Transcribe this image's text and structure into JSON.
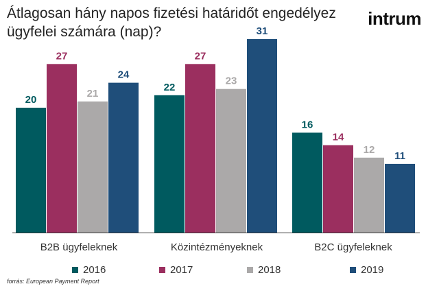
{
  "title": "Átlagosan hány napos fizetési határidőt engedélyez ügyfelei számára (nap)?",
  "logo": "intrum",
  "source": "forrás: European Payment Report",
  "colors": {
    "2016": "#005a5f",
    "2017": "#9b2f5f",
    "2018": "#aba9a9",
    "2019": "#1f4e7a"
  },
  "chart_data": {
    "type": "bar",
    "title": "Átlagosan hány napos fizetési határidőt engedélyez ügyfelei számára (nap)?",
    "categories": [
      "B2B ügyfeleknek",
      "Közintézményeknek",
      "B2C ügyfeleknek"
    ],
    "series": [
      {
        "name": "2016",
        "values": [
          20,
          22,
          16
        ]
      },
      {
        "name": "2017",
        "values": [
          27,
          27,
          14
        ]
      },
      {
        "name": "2018",
        "values": [
          21,
          23,
          12
        ]
      },
      {
        "name": "2019",
        "values": [
          24,
          31,
          11
        ]
      }
    ],
    "ylim": [
      0,
      32
    ],
    "grid": false,
    "data_labels": true,
    "legend_position": "bottom"
  }
}
